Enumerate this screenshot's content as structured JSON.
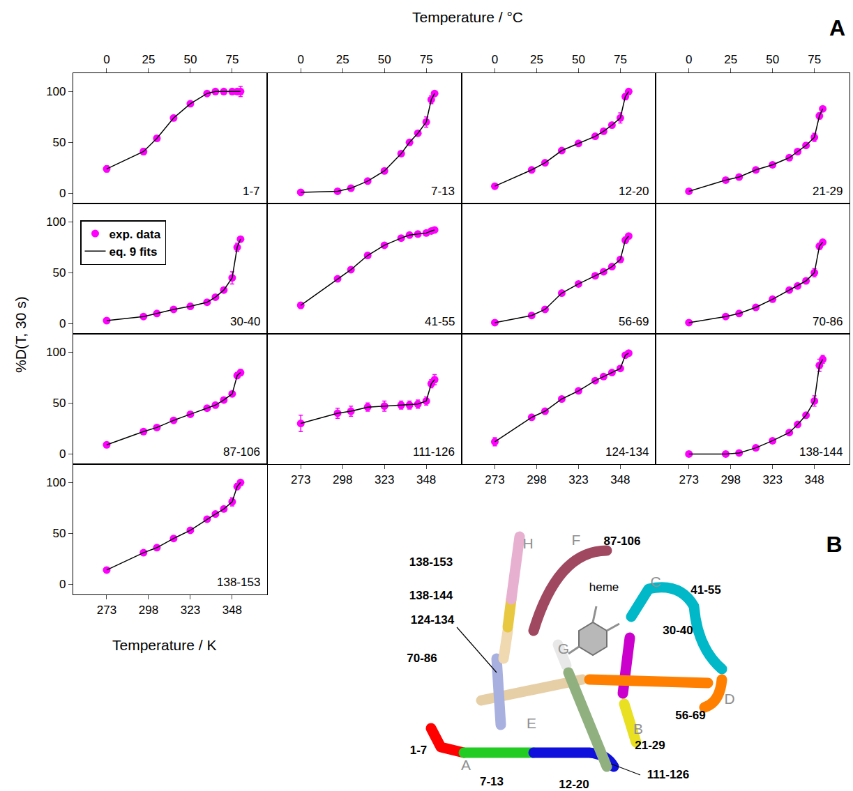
{
  "chart_data": {
    "type": "scatter",
    "panel_letter": "A",
    "top_axis_title": "Temperature / °C",
    "x_title": "Temperature / K",
    "y_title": "%D(T, 30 s)",
    "xlim": [
      253,
      369
    ],
    "xticks": [
      273,
      298,
      323,
      348
    ],
    "x2lim": [
      -20,
      96
    ],
    "x2ticks": [
      0,
      25,
      50,
      75
    ],
    "ylim": [
      -10,
      118
    ],
    "yticks": [
      0,
      50,
      100
    ],
    "grid": false,
    "legend": "top left",
    "x": [
      273,
      295,
      303,
      313,
      323,
      333,
      338,
      343,
      348,
      351,
      353
    ],
    "series": [
      {
        "name": "exp. data",
        "type": "scatter",
        "color": "#ff00ff",
        "marker": "circle"
      },
      {
        "name": "eq. 9 fits",
        "type": "line",
        "color": "#000000",
        "line_style": "solid"
      }
    ],
    "panels": [
      {
        "title": "1-7",
        "values": [
          24,
          41,
          54,
          74,
          88,
          98,
          100,
          100,
          100,
          100,
          100
        ],
        "errors": [
          3,
          3,
          2,
          2,
          2,
          2,
          2,
          2,
          2,
          2,
          5
        ],
        "fit": [
          24,
          41,
          54,
          74,
          88,
          98,
          100,
          100,
          100,
          100,
          100
        ]
      },
      {
        "title": "7-13",
        "values": [
          1,
          2,
          5,
          12,
          22,
          39,
          50,
          59,
          70,
          92,
          98
        ],
        "errors": [
          1,
          1,
          1,
          1,
          1,
          2,
          2,
          2,
          5,
          4,
          2
        ],
        "fit": [
          1,
          2,
          5,
          12,
          22,
          39,
          50,
          59,
          70,
          92,
          98
        ]
      },
      {
        "title": "12-20",
        "values": [
          7,
          23,
          30,
          42,
          49,
          56,
          61,
          67,
          74,
          95,
          100
        ],
        "errors": [
          1,
          1,
          1,
          1,
          1,
          1,
          1,
          2,
          5,
          3,
          2
        ],
        "fit": [
          7,
          23,
          30,
          42,
          49,
          56,
          61,
          67,
          74,
          95,
          100
        ]
      },
      {
        "title": "21-29",
        "values": [
          2,
          13,
          16,
          23,
          28,
          35,
          41,
          47,
          55,
          76,
          83
        ],
        "errors": [
          2,
          1,
          1,
          1,
          1,
          1,
          1,
          1,
          4,
          3,
          2
        ],
        "fit": [
          2,
          13,
          16,
          23,
          28,
          35,
          41,
          47,
          55,
          76,
          83
        ]
      },
      {
        "title": "30-40",
        "values": [
          3,
          7,
          10,
          14,
          17,
          21,
          26,
          33,
          45,
          75,
          83
        ],
        "errors": [
          1,
          1,
          1,
          1,
          1,
          1,
          1,
          2,
          6,
          4,
          2
        ],
        "fit": [
          3,
          7,
          10,
          14,
          17,
          21,
          26,
          33,
          45,
          75,
          83
        ]
      },
      {
        "title": "41-55",
        "values": [
          18,
          44,
          53,
          67,
          77,
          84,
          87,
          88,
          89,
          91,
          92
        ],
        "errors": [
          3,
          1,
          1,
          1,
          1,
          1,
          1,
          1,
          1,
          1,
          1
        ],
        "fit": [
          18,
          44,
          53,
          67,
          77,
          84,
          87,
          88,
          89,
          91,
          92
        ]
      },
      {
        "title": "56-69",
        "values": [
          1,
          8,
          14,
          30,
          39,
          47,
          51,
          56,
          63,
          82,
          86
        ],
        "errors": [
          1,
          1,
          1,
          1,
          1,
          1,
          1,
          1,
          2,
          3,
          2
        ],
        "fit": [
          1,
          8,
          14,
          30,
          39,
          47,
          51,
          56,
          63,
          82,
          86
        ]
      },
      {
        "title": "70-86",
        "values": [
          1,
          7,
          10,
          16,
          24,
          33,
          37,
          42,
          50,
          76,
          80
        ],
        "errors": [
          1,
          1,
          1,
          1,
          1,
          1,
          1,
          1,
          4,
          3,
          2
        ],
        "fit": [
          1,
          7,
          10,
          16,
          24,
          33,
          37,
          42,
          50,
          76,
          80
        ]
      },
      {
        "title": "87-106",
        "values": [
          9,
          22,
          26,
          33,
          39,
          45,
          48,
          53,
          59,
          77,
          80
        ],
        "errors": [
          1,
          1,
          1,
          1,
          1,
          1,
          1,
          1,
          2,
          3,
          3
        ],
        "fit": [
          9,
          22,
          26,
          33,
          39,
          45,
          48,
          53,
          59,
          77,
          80
        ]
      },
      {
        "title": "111-126",
        "values": [
          30,
          40,
          42,
          46,
          47,
          48,
          48,
          49,
          52,
          69,
          73
        ],
        "errors": [
          8,
          5,
          5,
          4,
          5,
          4,
          4,
          4,
          4,
          4,
          5
        ],
        "fit": [
          30,
          40,
          42,
          46,
          47,
          48,
          48,
          49,
          52,
          69,
          73
        ]
      },
      {
        "title": "124-134",
        "values": [
          12,
          36,
          42,
          54,
          62,
          72,
          76,
          80,
          84,
          97,
          99
        ],
        "errors": [
          4,
          1,
          1,
          1,
          1,
          1,
          1,
          1,
          2,
          2,
          1
        ],
        "fit": [
          12,
          36,
          42,
          54,
          62,
          72,
          76,
          80,
          84,
          97,
          99
        ]
      },
      {
        "title": "138-144",
        "values": [
          0,
          0,
          1,
          6,
          13,
          21,
          29,
          38,
          52,
          87,
          93
        ],
        "errors": [
          1,
          1,
          1,
          1,
          1,
          1,
          1,
          2,
          5,
          6,
          4
        ],
        "fit": [
          0,
          0,
          1,
          6,
          13,
          21,
          29,
          38,
          52,
          87,
          93
        ]
      },
      {
        "title": "138-153",
        "values": [
          14,
          31,
          36,
          45,
          53,
          64,
          69,
          74,
          81,
          96,
          100
        ],
        "errors": [
          1,
          1,
          1,
          1,
          1,
          1,
          1,
          2,
          4,
          3,
          2
        ],
        "fit": [
          14,
          31,
          36,
          45,
          53,
          64,
          69,
          74,
          81,
          96,
          100
        ]
      }
    ]
  },
  "structure": {
    "letter": "B",
    "heme_label": "heme",
    "helix_letters": [
      "A",
      "B",
      "C",
      "D",
      "E",
      "F",
      "G",
      "H"
    ],
    "segments": [
      {
        "label": "1-7",
        "color": "#ff0000"
      },
      {
        "label": "7-13",
        "color": "#22cc22"
      },
      {
        "label": "12-20",
        "color": "#1010dd"
      },
      {
        "label": "21-29",
        "color": "#e8e020"
      },
      {
        "label": "30-40",
        "color": "#cc00cc"
      },
      {
        "label": "41-55",
        "color": "#00b8c8"
      },
      {
        "label": "56-69",
        "color": "#ff8000"
      },
      {
        "label": "70-86",
        "color": "#a8b0e0"
      },
      {
        "label": "87-106",
        "color": "#a04860"
      },
      {
        "label": "111-126",
        "color": "#90b080"
      },
      {
        "label": "124-134",
        "color": "#f0d8b0"
      },
      {
        "label": "138-144",
        "color": "#e8c840"
      },
      {
        "label": "138-153",
        "color": "#e8b0d0"
      }
    ]
  }
}
